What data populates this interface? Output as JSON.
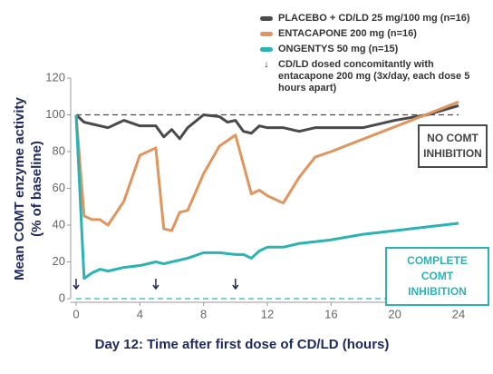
{
  "chart_data": {
    "type": "line",
    "xlabel": "Day 12: Time after first dose of CD/LD (hours)",
    "ylabel": [
      "Mean COMT enzyme activity",
      "(% of baseline)"
    ],
    "xlim": [
      0,
      24
    ],
    "xticks": [
      0,
      4,
      8,
      12,
      16,
      20,
      24
    ],
    "ylim": [
      0,
      120
    ],
    "yticks": [
      0,
      20,
      40,
      60,
      80,
      100,
      120
    ],
    "series": [
      {
        "name": "PLACEBO + CD/LD 25 mg/100 mg (n=16)",
        "color": "#4a4a4d",
        "x": [
          0,
          0.5,
          1,
          2,
          3,
          4,
          5,
          5.5,
          6,
          6.5,
          7,
          8,
          9,
          9.5,
          10,
          10.5,
          11,
          11.5,
          12,
          13,
          14,
          15,
          16,
          18,
          20,
          22,
          24
        ],
        "values": [
          100,
          96,
          95,
          93,
          97,
          94,
          94,
          88,
          92,
          87,
          93,
          100,
          99,
          96,
          97,
          91,
          90,
          94,
          93,
          93,
          91,
          93,
          93,
          93,
          97,
          100,
          105
        ]
      },
      {
        "name": "ENTACAPONE 200 mg (n=16)",
        "color": "#e1955e",
        "x": [
          0,
          0.5,
          1,
          1.5,
          2,
          3,
          4,
          5,
          5.5,
          6,
          6.5,
          7,
          8,
          9,
          10,
          11,
          11.5,
          12,
          13,
          14,
          15,
          16,
          24
        ],
        "values": [
          100,
          45,
          43,
          43,
          40,
          53,
          78,
          82,
          38,
          37,
          47,
          48,
          68,
          83,
          89,
          57,
          59,
          56,
          52,
          66,
          77,
          80,
          107
        ]
      },
      {
        "name": "ONGENTYS 50 mg (n=15)",
        "color": "#2bb3b4",
        "x": [
          0,
          0.5,
          1,
          1.5,
          2,
          3,
          4,
          5,
          5.5,
          6,
          7,
          8,
          9,
          10,
          10.5,
          11,
          11.5,
          12,
          13,
          14,
          16,
          18,
          20,
          22,
          24
        ],
        "values": [
          100,
          11,
          14,
          16,
          15,
          17,
          18,
          20,
          19,
          20,
          22,
          25,
          25,
          24,
          24,
          22,
          26,
          28,
          28,
          30,
          32,
          35,
          37,
          39,
          41
        ]
      }
    ],
    "dose_note": "CD/LD dosed concomitantly with entacapone 200 mg (3x/day, each dose 5 hours apart)",
    "dose_times": [
      0,
      5,
      10
    ],
    "reference_lines": [
      {
        "value": 100,
        "label": "NO COMT INHIBITION",
        "color": "#4a4a4d"
      },
      {
        "value": 0,
        "label": "COMPLETE COMT INHIBITION",
        "color": "#2bb3b4"
      }
    ]
  }
}
